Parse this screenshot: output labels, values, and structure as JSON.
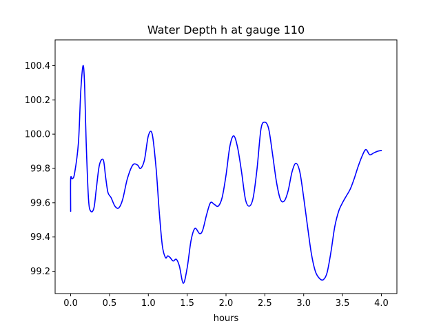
{
  "chart_data": {
    "type": "line",
    "title": "Water Depth h at gauge 110",
    "xlabel": "hours",
    "ylabel": "",
    "xlim": [
      -0.2,
      4.2
    ],
    "ylim": [
      99.07,
      100.55
    ],
    "xticks": [
      0.0,
      0.5,
      1.0,
      1.5,
      2.0,
      2.5,
      3.0,
      3.5,
      4.0
    ],
    "xtick_labels": [
      "0.0",
      "0.5",
      "1.0",
      "1.5",
      "2.0",
      "2.5",
      "3.0",
      "3.5",
      "4.0"
    ],
    "yticks": [
      99.2,
      99.4,
      99.6,
      99.8,
      100.0,
      100.2,
      100.4
    ],
    "ytick_labels": [
      "99.2",
      "99.4",
      "99.6",
      "99.8",
      "100.0",
      "100.2",
      "100.4"
    ],
    "grid": false,
    "series": [
      {
        "name": "h",
        "color": "#0000ff",
        "x": [
          0.0,
          0.0,
          0.02,
          0.05,
          0.1,
          0.13,
          0.16,
          0.18,
          0.2,
          0.23,
          0.26,
          0.3,
          0.33,
          0.37,
          0.42,
          0.45,
          0.48,
          0.52,
          0.57,
          0.62,
          0.67,
          0.73,
          0.8,
          0.86,
          0.9,
          0.95,
          1.0,
          1.05,
          1.1,
          1.14,
          1.18,
          1.22,
          1.25,
          1.28,
          1.32,
          1.36,
          1.4,
          1.45,
          1.5,
          1.55,
          1.6,
          1.66,
          1.7,
          1.75,
          1.8,
          1.85,
          1.9,
          1.95,
          2.0,
          2.05,
          2.1,
          2.15,
          2.2,
          2.25,
          2.3,
          2.35,
          2.4,
          2.45,
          2.5,
          2.55,
          2.6,
          2.65,
          2.7,
          2.75,
          2.8,
          2.85,
          2.9,
          2.95,
          3.0,
          3.05,
          3.1,
          3.15,
          3.2,
          3.25,
          3.3,
          3.35,
          3.4,
          3.45,
          3.5,
          3.55,
          3.6,
          3.65,
          3.7,
          3.75,
          3.8,
          3.85,
          3.9,
          3.95,
          4.0
        ],
        "y": [
          99.55,
          99.74,
          99.74,
          99.77,
          99.95,
          100.25,
          100.4,
          100.28,
          99.95,
          99.62,
          99.55,
          99.57,
          99.68,
          99.82,
          99.85,
          99.75,
          99.66,
          99.63,
          99.58,
          99.57,
          99.62,
          99.74,
          99.82,
          99.82,
          99.8,
          99.85,
          99.99,
          100.0,
          99.8,
          99.55,
          99.35,
          99.28,
          99.29,
          99.28,
          99.26,
          99.27,
          99.23,
          99.13,
          99.22,
          99.38,
          99.45,
          99.42,
          99.44,
          99.53,
          99.6,
          99.59,
          99.58,
          99.63,
          99.76,
          99.93,
          99.99,
          99.92,
          99.78,
          99.62,
          99.58,
          99.63,
          99.8,
          100.03,
          100.07,
          100.03,
          99.88,
          99.72,
          99.62,
          99.61,
          99.67,
          99.78,
          99.83,
          99.78,
          99.63,
          99.46,
          99.3,
          99.2,
          99.16,
          99.15,
          99.19,
          99.31,
          99.46,
          99.55,
          99.6,
          99.64,
          99.68,
          99.74,
          99.81,
          99.87,
          99.91,
          99.88,
          99.89,
          99.9,
          99.905
        ]
      }
    ]
  }
}
